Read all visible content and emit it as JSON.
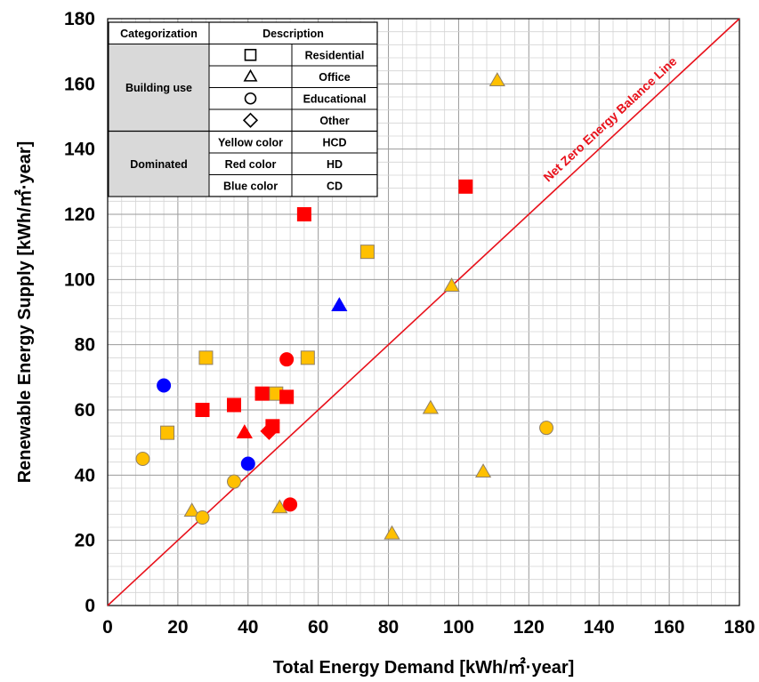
{
  "chart_data": {
    "type": "scatter",
    "xlabel": "Total Energy Demand [kWh/㎡·year]",
    "ylabel": "Renewable Energy Supply [kWh/㎡·year]",
    "xlim": [
      0,
      180
    ],
    "ylim": [
      0,
      180
    ],
    "x_ticks": [
      "0",
      "20",
      "40",
      "60",
      "80",
      "100",
      "120",
      "140",
      "160",
      "180"
    ],
    "y_ticks": [
      "0",
      "20",
      "40",
      "60",
      "80",
      "100",
      "120",
      "140",
      "160",
      "180"
    ],
    "major_step": 20,
    "minor_step": 4,
    "grid": true,
    "reference_line": {
      "label": "Net Zero Energy Balance Line",
      "from": [
        0,
        0
      ],
      "to": [
        180,
        180
      ],
      "color": "#e8101a"
    },
    "colors": {
      "HCD": "#ffc000",
      "HD": "#ff0000",
      "CD": "#0000ff"
    },
    "points": [
      {
        "x": 17,
        "y": 53,
        "shape": "square",
        "group": "HCD"
      },
      {
        "x": 28,
        "y": 76,
        "shape": "square",
        "group": "HCD"
      },
      {
        "x": 48,
        "y": 65,
        "shape": "square",
        "group": "HCD"
      },
      {
        "x": 57,
        "y": 76,
        "shape": "square",
        "group": "HCD"
      },
      {
        "x": 74,
        "y": 108.5,
        "shape": "square",
        "group": "HCD"
      },
      {
        "x": 27,
        "y": 60,
        "shape": "square",
        "group": "HD"
      },
      {
        "x": 36,
        "y": 61.5,
        "shape": "square",
        "group": "HD"
      },
      {
        "x": 44,
        "y": 65,
        "shape": "square",
        "group": "HD"
      },
      {
        "x": 47,
        "y": 55,
        "shape": "square",
        "group": "HD"
      },
      {
        "x": 51,
        "y": 64,
        "shape": "square",
        "group": "HD"
      },
      {
        "x": 56,
        "y": 120,
        "shape": "square",
        "group": "HD"
      },
      {
        "x": 102,
        "y": 128.5,
        "shape": "square",
        "group": "HD"
      },
      {
        "x": 24,
        "y": 29,
        "shape": "triangle",
        "group": "HCD"
      },
      {
        "x": 49,
        "y": 30,
        "shape": "triangle",
        "group": "HCD"
      },
      {
        "x": 81,
        "y": 22,
        "shape": "triangle",
        "group": "HCD"
      },
      {
        "x": 92,
        "y": 60.5,
        "shape": "triangle",
        "group": "HCD"
      },
      {
        "x": 98,
        "y": 98,
        "shape": "triangle",
        "group": "HCD"
      },
      {
        "x": 107,
        "y": 41,
        "shape": "triangle",
        "group": "HCD"
      },
      {
        "x": 111,
        "y": 161,
        "shape": "triangle",
        "group": "HCD"
      },
      {
        "x": 39,
        "y": 53,
        "shape": "triangle",
        "group": "HD"
      },
      {
        "x": 66,
        "y": 92,
        "shape": "triangle",
        "group": "CD"
      },
      {
        "x": 10,
        "y": 45,
        "shape": "circle",
        "group": "HCD"
      },
      {
        "x": 27,
        "y": 27,
        "shape": "circle",
        "group": "HCD"
      },
      {
        "x": 36,
        "y": 38,
        "shape": "circle",
        "group": "HCD"
      },
      {
        "x": 125,
        "y": 54.5,
        "shape": "circle",
        "group": "HCD"
      },
      {
        "x": 51,
        "y": 75.5,
        "shape": "circle",
        "group": "HD"
      },
      {
        "x": 52,
        "y": 31,
        "shape": "circle",
        "group": "HD"
      },
      {
        "x": 16,
        "y": 67.5,
        "shape": "circle",
        "group": "CD"
      },
      {
        "x": 40,
        "y": 43.5,
        "shape": "circle",
        "group": "CD"
      },
      {
        "x": 46,
        "y": 53.5,
        "shape": "diamond",
        "group": "HD"
      }
    ],
    "legend": {
      "placement": "top-left",
      "header": [
        "Categorization",
        "Description"
      ],
      "sections": [
        {
          "category": "Building use",
          "rows": [
            {
              "symbol": "square",
              "label": "Residential"
            },
            {
              "symbol": "triangle",
              "label": "Office"
            },
            {
              "symbol": "circle",
              "label": "Educational"
            },
            {
              "symbol": "diamond",
              "label": "Other"
            }
          ]
        },
        {
          "category": "Dominated",
          "rows": [
            {
              "key": "Yellow color",
              "label": "HCD"
            },
            {
              "key": "Red color",
              "label": "HD"
            },
            {
              "key": "Blue color",
              "label": "CD"
            }
          ]
        }
      ]
    }
  }
}
